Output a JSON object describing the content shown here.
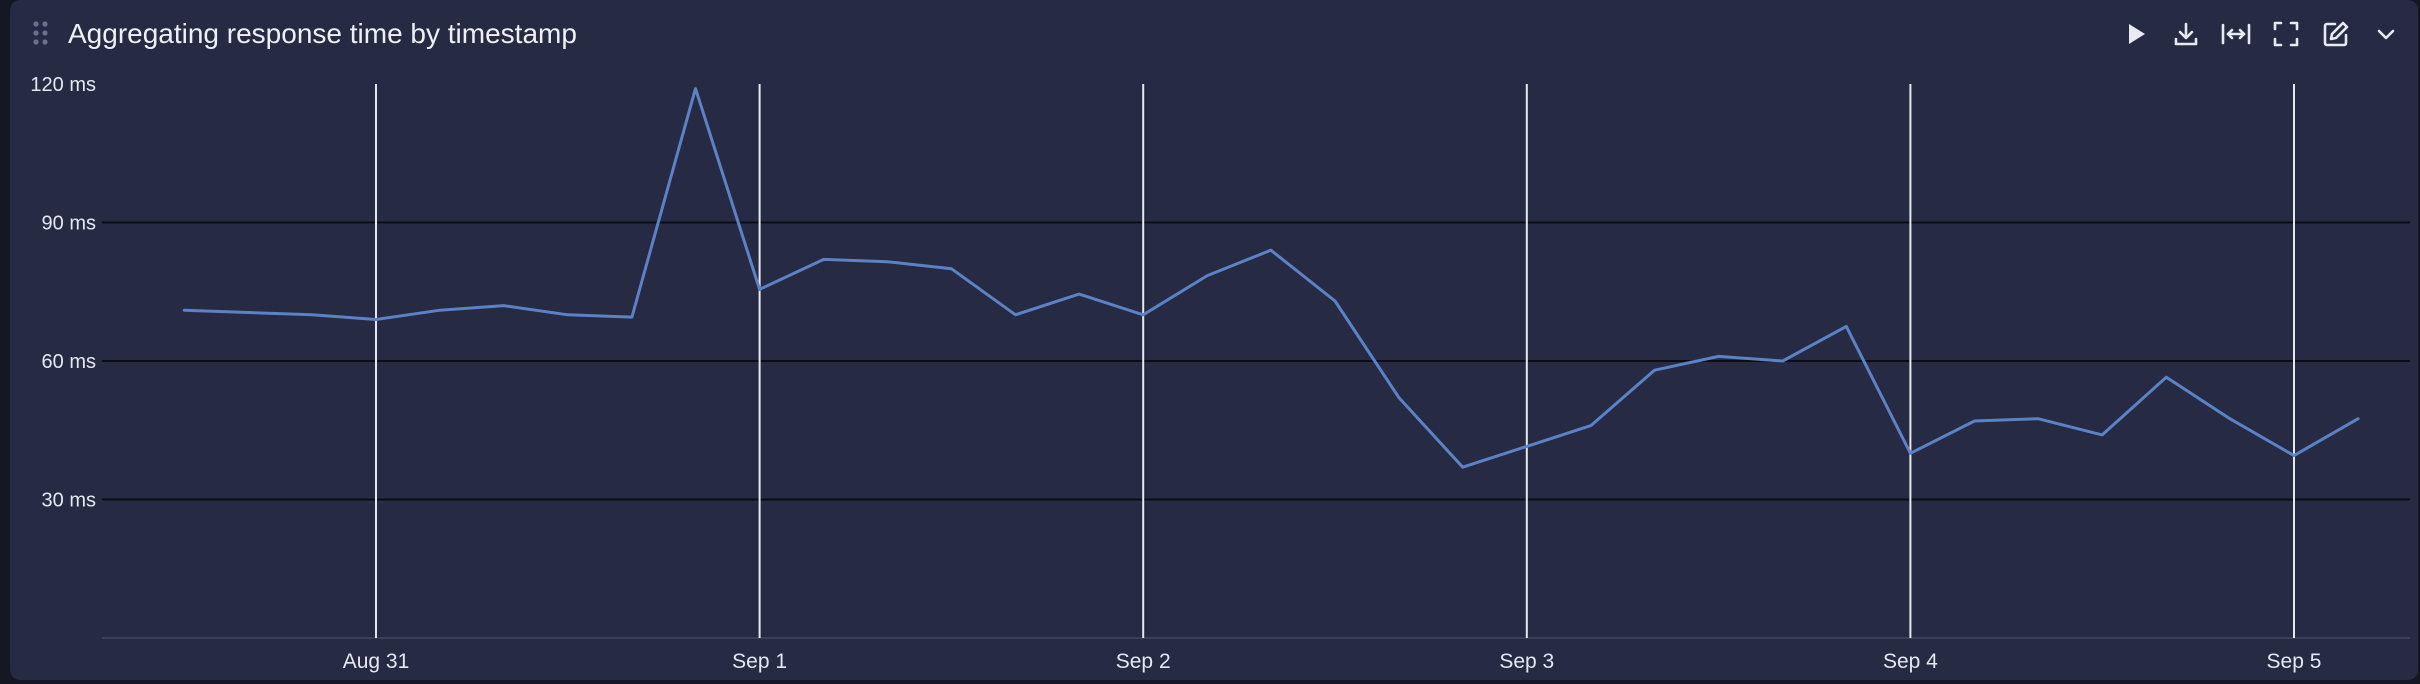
{
  "panel": {
    "title": "Aggregating response time by timestamp",
    "toolbar": [
      {
        "name": "run-button",
        "icon": "play-icon"
      },
      {
        "name": "download-button",
        "icon": "download-icon"
      },
      {
        "name": "fit-width-button",
        "icon": "fit-width-icon"
      },
      {
        "name": "fullscreen-button",
        "icon": "fullscreen-icon"
      },
      {
        "name": "edit-button",
        "icon": "edit-icon"
      },
      {
        "name": "more-options-button",
        "icon": "chevron-down-icon"
      }
    ]
  },
  "colors": {
    "panel_bg": "#262a42",
    "line": "#5b82c7",
    "gridline_h": "#0c0d14",
    "gridline_v": "#e6e8f0"
  },
  "chart_data": {
    "type": "line",
    "title": "Aggregating response time by timestamp",
    "xlabel": "",
    "ylabel": "",
    "ylim": [
      0,
      120
    ],
    "yticks": [
      30,
      60,
      90,
      120
    ],
    "ytick_labels": [
      "30 ms",
      "60 ms",
      "90 ms",
      "120 ms"
    ],
    "xticks": [
      {
        "label": "Aug 31",
        "value": 0
      },
      {
        "label": "Sep 1",
        "value": 1
      },
      {
        "label": "Sep 2",
        "value": 2
      },
      {
        "label": "Sep 3",
        "value": 3
      },
      {
        "label": "Sep 4",
        "value": 4
      },
      {
        "label": "Sep 5",
        "value": 5
      }
    ],
    "grid": true,
    "series": [
      {
        "x": [
          -0.5,
          -0.333,
          -0.167,
          0,
          0.167,
          0.333,
          0.5,
          0.667,
          0.833,
          1,
          1.167,
          1.333,
          1.5,
          1.667,
          1.833,
          2,
          2.167,
          2.333,
          2.5,
          2.667,
          2.833,
          3,
          3.167,
          3.333,
          3.5,
          3.667,
          3.833,
          4,
          4.167,
          4.333,
          4.5,
          4.667,
          4.833,
          5,
          5.167
        ],
        "values": [
          71,
          70.5,
          70,
          69,
          71,
          72,
          70,
          69.5,
          119,
          75.5,
          82,
          81.5,
          80,
          70,
          74.5,
          70,
          78.5,
          84,
          73,
          52,
          37,
          41.5,
          46,
          58,
          61,
          60,
          67.5,
          40,
          47,
          47.5,
          44,
          56.5,
          47.5,
          39.5,
          47.5
        ]
      }
    ]
  }
}
